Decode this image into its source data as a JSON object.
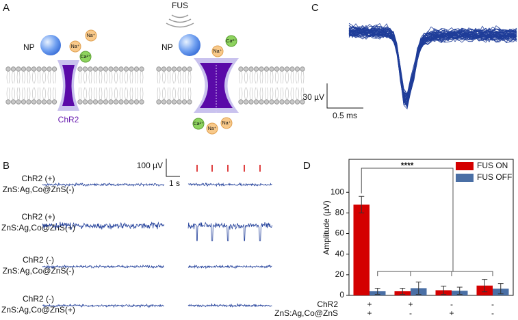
{
  "panels": {
    "a": {
      "label": "A",
      "left": {
        "np": "NP",
        "channel": "ChR2",
        "ions": [
          "Na⁺",
          "Na⁺",
          "Ca²⁺"
        ]
      },
      "right": {
        "stimulus": "FUS",
        "np": "NP",
        "ions_top": [
          "Ca²⁺",
          "Na⁺"
        ],
        "ions_bottom": [
          "Ca²⁺",
          "Na⁺",
          "Na⁺"
        ]
      }
    },
    "b": {
      "label": "B",
      "scale_y": "100 µV",
      "scale_x": "1 s",
      "rows": [
        [
          "ChR2 (+)",
          "ZnS:Ag,Co@ZnS(-)"
        ],
        [
          "ChR2 (+)",
          "ZnS:Ag,Co@ZnS(+)"
        ],
        [
          "ChR2 (-)",
          "ZnS:Ag,Co@ZnS(-)"
        ],
        [
          "ChR2 (-)",
          "ZnS:Ag,Co@ZnS(+)"
        ]
      ]
    },
    "c": {
      "label": "C",
      "scale_y": "30 µV",
      "scale_x": "0.5 ms"
    }
  },
  "chart_data": {
    "type": "bar",
    "panel_label": "D",
    "y_label": "Amplitude (µV)",
    "category_rows": [
      {
        "name": "ChR2",
        "values": [
          "+",
          "+",
          "-",
          "-"
        ]
      },
      {
        "name": "ZnS:Ag,Co@ZnS",
        "values": [
          "+",
          "-",
          "+",
          "-"
        ]
      }
    ],
    "series": [
      {
        "name": "FUS ON",
        "color": "#d40000",
        "values": [
          88,
          4,
          5,
          9.5
        ],
        "errors": [
          8,
          3,
          4,
          6
        ]
      },
      {
        "name": "FUS OFF",
        "color": "#4a6fa5",
        "values": [
          4,
          7,
          4.5,
          6.5
        ],
        "errors": [
          3,
          6,
          3.5,
          5
        ]
      }
    ],
    "ylim": [
      0,
      132
    ],
    "yticks": [
      0,
      20,
      40,
      60,
      80,
      100
    ],
    "annotation": "****",
    "legend": "top-right"
  }
}
